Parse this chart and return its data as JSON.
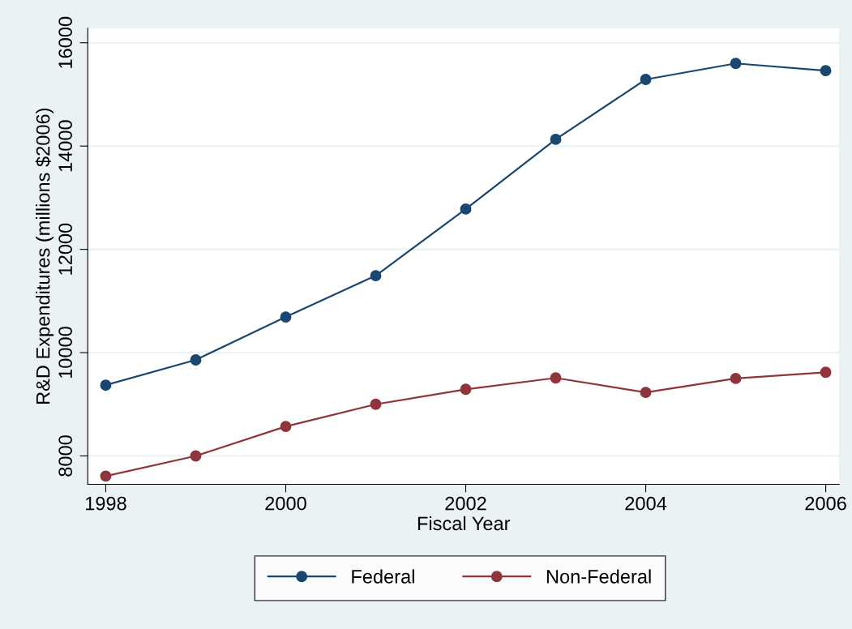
{
  "chart_data": {
    "type": "line",
    "xlabel": "Fiscal Year",
    "ylabel": "R&D Expenditures (millions $2006)",
    "x": [
      1998,
      1999,
      2000,
      2001,
      2002,
      2003,
      2004,
      2005,
      2006
    ],
    "series": [
      {
        "name": "Federal",
        "color": "#1a476f",
        "values": [
          9370,
          9860,
          10690,
          11490,
          12780,
          14130,
          15290,
          15600,
          15460
        ]
      },
      {
        "name": "Non-Federal",
        "color": "#90353b",
        "values": [
          7610,
          8000,
          8570,
          9000,
          9290,
          9510,
          9230,
          9500,
          9620
        ]
      }
    ],
    "xlim": [
      1997.8,
      2006.15
    ],
    "xticks": [
      1998,
      2000,
      2002,
      2004,
      2006
    ],
    "ylim": [
      7450,
      16280
    ],
    "yticks": [
      8000,
      10000,
      12000,
      14000,
      16000
    ],
    "grid": "y",
    "legend": "bottom",
    "marker": "circle",
    "line_style": "solid"
  }
}
